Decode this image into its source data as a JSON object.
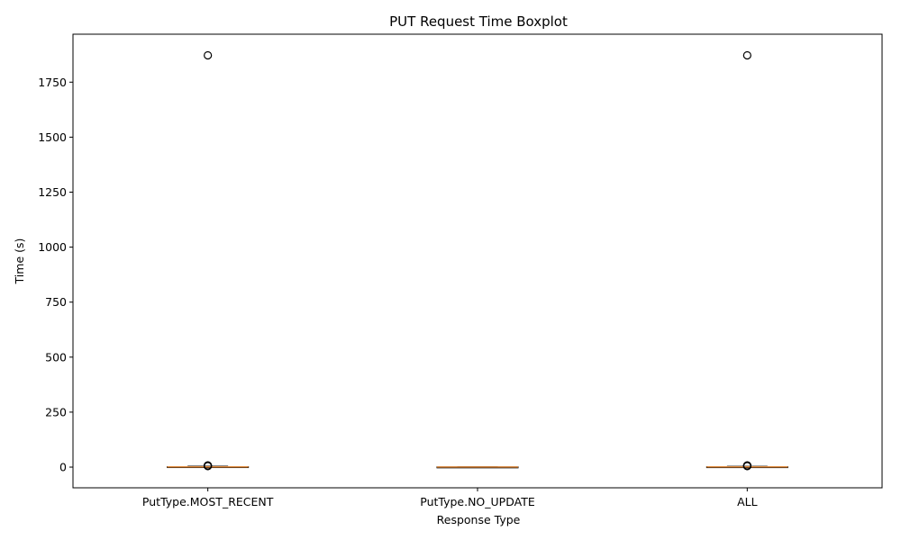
{
  "chart_data": {
    "type": "boxplot",
    "title": "PUT Request Time Boxplot",
    "xlabel": "Response Type",
    "ylabel": "Time (s)",
    "categories": [
      "PutType.MOST_RECENT",
      "PutType.NO_UPDATE",
      "ALL"
    ],
    "ylim": [
      -94,
      1968
    ],
    "yticks": [
      0,
      250,
      500,
      750,
      1000,
      1250,
      1500,
      1750
    ],
    "grid": false,
    "boxes": [
      {
        "whislo": 0.1,
        "q1": 0.5,
        "med": 1.0,
        "q3": 2.0,
        "whishi": 4.0,
        "fliers": [
          1872,
          4.5,
          5,
          6,
          7,
          8
        ]
      },
      {
        "whislo": 0.05,
        "q1": 0.2,
        "med": 0.5,
        "q3": 0.8,
        "whishi": 1.5,
        "fliers": []
      },
      {
        "whislo": 0.1,
        "q1": 0.4,
        "med": 0.9,
        "q3": 1.8,
        "whishi": 3.8,
        "fliers": [
          1872,
          4.5,
          5,
          6,
          7,
          8
        ]
      }
    ],
    "colors": {
      "median": "#e08a3c",
      "box": "#000000",
      "flier": "#000000"
    }
  }
}
